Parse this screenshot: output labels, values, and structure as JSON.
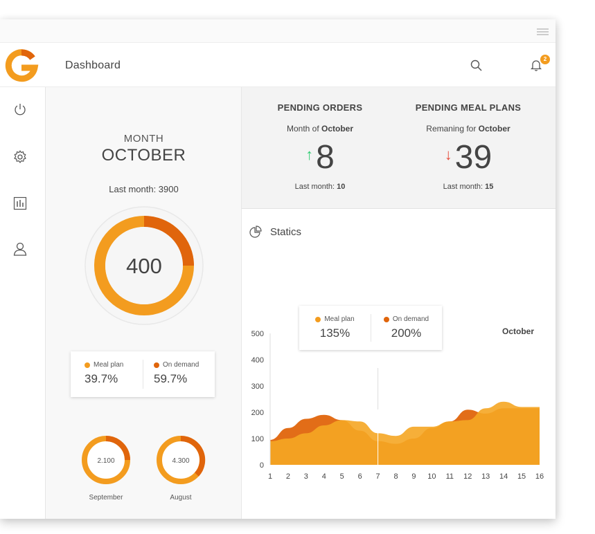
{
  "header": {
    "title": "Dashboard",
    "notification_count": "2"
  },
  "icons": {
    "logo": "g-logo",
    "menu": "hamburger-icon",
    "search": "search-icon",
    "bell": "bell-icon",
    "sidebar": [
      "power-icon",
      "gear-icon",
      "bar-chart-icon",
      "user-icon"
    ],
    "statics": "pie-chart-icon"
  },
  "colors": {
    "accent": "#f39c1f",
    "accent_dark": "#e0650c",
    "meal_plan": "#f39c1f",
    "on_demand": "#e0650c",
    "up": "#2ecc71",
    "down": "#e74c3c"
  },
  "month_panel": {
    "label": "MONTH",
    "name": "OCTOBER",
    "last_month": "Last month: 3900",
    "total": "400",
    "legend": [
      {
        "label": "Meal plan",
        "value": "39.7%"
      },
      {
        "label": "On demand",
        "value": "59.7%"
      }
    ],
    "small_donuts": [
      {
        "value": "2.100",
        "caption": "September"
      },
      {
        "value": "4.300",
        "caption": "August"
      }
    ]
  },
  "pending_orders": {
    "title": "PENDING ORDERS",
    "sub_prefix": "Month of ",
    "sub_month": "October",
    "value": "8",
    "last_prefix": "Last month: ",
    "last_value": "10"
  },
  "pending_meal_plans": {
    "title": "PENDING MEAL PLANS",
    "sub_prefix": "Remaning for ",
    "sub_month": "October",
    "value": "39",
    "last_prefix": "Last month: ",
    "last_value": "15"
  },
  "statics": {
    "title": "Statics",
    "month": "October",
    "tooltip": [
      {
        "label": "Meal plan",
        "value": "135%"
      },
      {
        "label": "On demand",
        "value": "200%"
      }
    ]
  },
  "chart_data": {
    "type": "area",
    "x": [
      1,
      2,
      3,
      4,
      5,
      6,
      7,
      8,
      9,
      10,
      11,
      12,
      13,
      14,
      15,
      16
    ],
    "ylim": [
      0,
      500
    ],
    "yticks": [
      0,
      100,
      200,
      300,
      400,
      500
    ],
    "series": [
      {
        "name": "On demand",
        "values": [
          95,
          140,
          175,
          190,
          170,
          130,
          90,
          80,
          100,
          140,
          165,
          210,
          195,
          215,
          215,
          215
        ]
      },
      {
        "name": "Meal plan",
        "values": [
          90,
          100,
          120,
          150,
          170,
          165,
          120,
          110,
          145,
          145,
          165,
          170,
          215,
          240,
          220,
          220
        ]
      }
    ],
    "marker_x": 7
  }
}
